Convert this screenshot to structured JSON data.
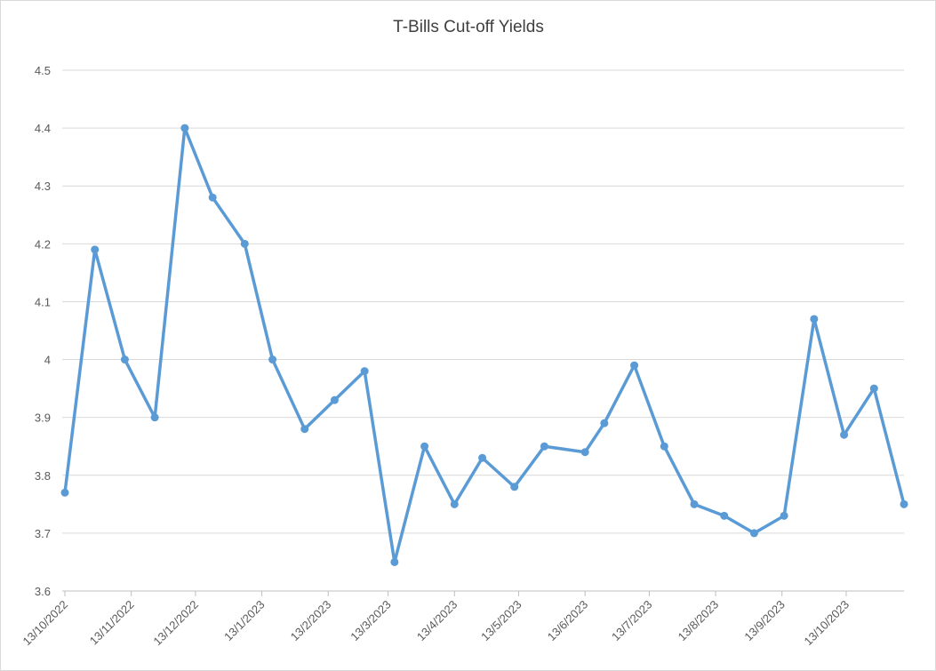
{
  "chart_data": {
    "type": "line",
    "title": "T-Bills Cut-off Yields",
    "x": [
      "2022-10-13",
      "2022-10-27",
      "2022-11-10",
      "2022-11-24",
      "2022-12-08",
      "2022-12-21",
      "2023-01-05",
      "2023-01-18",
      "2023-02-02",
      "2023-02-16",
      "2023-03-02",
      "2023-03-16",
      "2023-03-30",
      "2023-04-13",
      "2023-04-26",
      "2023-05-11",
      "2023-05-25",
      "2023-06-13",
      "2023-06-22",
      "2023-07-06",
      "2023-07-20",
      "2023-08-03",
      "2023-08-17",
      "2023-08-31",
      "2023-09-14",
      "2023-09-28",
      "2023-10-12",
      "2023-10-26",
      "2023-11-09"
    ],
    "series": [
      {
        "name": "T-Bills Cut-off Yields",
        "color": "#5b9bd5",
        "values": [
          3.77,
          4.19,
          4.0,
          3.9,
          4.4,
          4.28,
          4.2,
          4.0,
          3.88,
          3.93,
          3.98,
          3.65,
          3.85,
          3.75,
          3.83,
          3.78,
          3.85,
          3.84,
          3.89,
          3.99,
          3.85,
          3.75,
          3.73,
          3.7,
          3.73,
          4.07,
          3.87,
          3.95,
          3.75
        ]
      }
    ],
    "xlim": [
      "2022-10-13",
      "2023-11-09"
    ],
    "xticks": [
      {
        "value": "2022-10-13",
        "label": "13/10/2022"
      },
      {
        "value": "2022-11-13",
        "label": "13/11/2022"
      },
      {
        "value": "2022-12-13",
        "label": "13/12/2022"
      },
      {
        "value": "2023-01-13",
        "label": "13/1/2023"
      },
      {
        "value": "2023-02-13",
        "label": "13/2/2023"
      },
      {
        "value": "2023-03-13",
        "label": "13/3/2023"
      },
      {
        "value": "2023-04-13",
        "label": "13/4/2023"
      },
      {
        "value": "2023-05-13",
        "label": "13/5/2023"
      },
      {
        "value": "2023-06-13",
        "label": "13/6/2023"
      },
      {
        "value": "2023-07-13",
        "label": "13/7/2023"
      },
      {
        "value": "2023-08-13",
        "label": "13/8/2023"
      },
      {
        "value": "2023-09-13",
        "label": "13/9/2023"
      },
      {
        "value": "2023-10-13",
        "label": "13/10/2023"
      }
    ],
    "ylim": [
      3.6,
      4.5
    ],
    "yticks": [
      3.6,
      3.7,
      3.8,
      3.9,
      4,
      4.1,
      4.2,
      4.3,
      4.4,
      4.5
    ],
    "grid": true
  }
}
